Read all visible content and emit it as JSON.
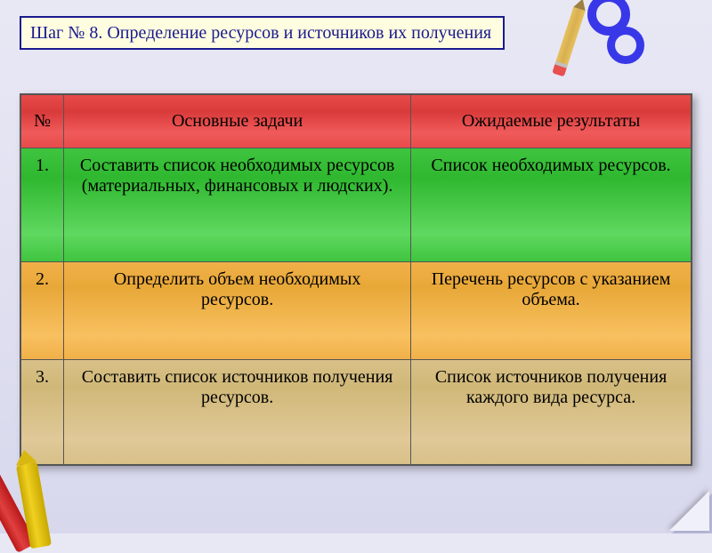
{
  "title": "Шаг № 8. Определение ресурсов и источников их получения",
  "headers": {
    "num": "№",
    "tasks": "Основные задачи",
    "results": "Ожидаемые результаты"
  },
  "rows": [
    {
      "num": "1.",
      "task": "Составить список необходимых ресурсов (материальных, финансовых и людских).",
      "result": "Список необходимых ресурсов."
    },
    {
      "num": "2.",
      "task": "Определить объем необходимых ресурсов.",
      "result": "Перечень ресурсов с указанием объема."
    },
    {
      "num": "3.",
      "task": "Составить список источников получения ресурсов.",
      "result": "Список источников получения каждого вида ресурса."
    }
  ],
  "colors": {
    "title_border": "#1a1a8f",
    "title_bg": "#fffde0",
    "header_row": "#e84a4a",
    "row1": "#3fc43f",
    "row2": "#f0b048",
    "row3": "#d8c088"
  }
}
